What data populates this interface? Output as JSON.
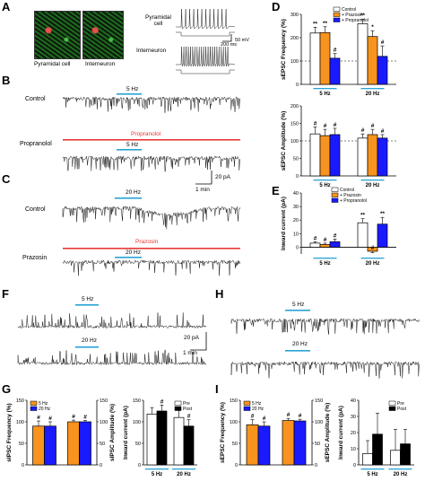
{
  "panel_letters": {
    "A": "A",
    "B": "B",
    "C": "C",
    "D": "D",
    "E": "E",
    "F": "F",
    "G": "G",
    "H": "H",
    "I": "I"
  },
  "panelA": {
    "image_labels": [
      "Pyramidal cell",
      "Interneuron"
    ],
    "trace_labels": [
      "Pyramidal\ncell",
      "Interneuron"
    ],
    "scale_v": "50 mV",
    "scale_t": "200 ms"
  },
  "panelB": {
    "row1": "Control",
    "row2": "Propranolol",
    "stim1": "5 Hz",
    "stim2": "5 Hz",
    "drug": "Propranolol",
    "scale_v": "20 pA",
    "scale_t": "1 min"
  },
  "panelC": {
    "row1": "Control",
    "row2": "Prazosin",
    "stim1": "20 Hz",
    "stim2": "20 Hz",
    "drug": "Prazosin"
  },
  "panelF": {
    "stim1": "5 Hz",
    "stim2": "20 Hz",
    "scale_v": "20 pA",
    "scale_t": "1 min"
  },
  "panelH": {
    "stim1": "5 Hz",
    "stim2": "20 Hz"
  },
  "colors": {
    "control": "#ffffff",
    "prazosin": "#f7931e",
    "propranolol": "#1a1aff",
    "red_bar": "#e53935",
    "stim_bar": "#29a3d6",
    "black": "#000000"
  },
  "chart_data": [
    {
      "id": "D-top",
      "type": "bar",
      "ylabel": "sEPSC Frequency (%)",
      "ylim": [
        0,
        300
      ],
      "yticks": [
        "0",
        "100",
        "200",
        "300"
      ],
      "categories": [
        "5 Hz",
        "20 Hz"
      ],
      "legend": [
        "Control",
        "+ Prazosin",
        "+ Propranolol"
      ],
      "series": [
        {
          "name": "Control",
          "values": [
            220,
            260
          ],
          "err": [
            25,
            20
          ],
          "marks": [
            "**",
            "**"
          ]
        },
        {
          "name": "+ Prazosin",
          "values": [
            222,
            205
          ],
          "err": [
            25,
            25
          ],
          "marks": [
            "**",
            "*"
          ]
        },
        {
          "name": "+ Propranolol",
          "values": [
            112,
            120
          ],
          "err": [
            20,
            45
          ],
          "marks": [
            "#",
            "#"
          ]
        }
      ],
      "dashed_at": 100
    },
    {
      "id": "D-bottom",
      "type": "bar",
      "ylabel": "sEPSC Amplitude (%)",
      "ylim": [
        0,
        200
      ],
      "yticks": [
        "0",
        "50",
        "100",
        "150",
        "200"
      ],
      "categories": [
        "5 Hz",
        "20 Hz"
      ],
      "series": [
        {
          "name": "Control",
          "values": [
            120,
            108
          ],
          "err": [
            20,
            12
          ],
          "marks": [
            "#",
            "#"
          ]
        },
        {
          "name": "+ Prazosin",
          "values": [
            115,
            118
          ],
          "err": [
            18,
            15
          ],
          "marks": [
            "#",
            "#"
          ]
        },
        {
          "name": "+ Propranolol",
          "values": [
            118,
            108
          ],
          "err": [
            18,
            10
          ],
          "marks": [
            "#",
            "#"
          ]
        }
      ],
      "dashed_at": 100
    },
    {
      "id": "E",
      "type": "bar",
      "ylabel": "Inward current (pA)",
      "ylim": [
        -5,
        40
      ],
      "yticks": [
        "0",
        "10",
        "20",
        "30",
        "40"
      ],
      "categories": [
        "5 Hz",
        "20 Hz"
      ],
      "legend": [
        "Control",
        "+ Prazosin",
        "+ Propranolol"
      ],
      "series": [
        {
          "name": "Control",
          "values": [
            3,
            18
          ],
          "err": [
            1,
            3
          ],
          "marks": [
            "#",
            "**"
          ]
        },
        {
          "name": "+ Prazosin",
          "values": [
            2,
            -3
          ],
          "err": [
            1,
            1
          ],
          "marks": [
            "#",
            "#"
          ]
        },
        {
          "name": "+ Propranolol",
          "values": [
            4,
            17
          ],
          "err": [
            2,
            5
          ],
          "marks": [
            "#",
            "**"
          ]
        }
      ]
    },
    {
      "id": "G-left",
      "type": "bar",
      "ylabel": "sIPSC Frequency (%)",
      "ylabel2": "sIPSC Amplitude (%)",
      "ylim": [
        0,
        150
      ],
      "yticks": [
        "0",
        "50",
        "100",
        "150"
      ],
      "categories": [
        "freq",
        "amp"
      ],
      "legend": [
        "5 Hz",
        "20 Hz"
      ],
      "series": [
        {
          "name": "5 Hz",
          "values": [
            90,
            100
          ],
          "err": [
            12,
            4
          ],
          "marks": [
            "#",
            "#"
          ]
        },
        {
          "name": "20 Hz",
          "values": [
            90,
            100
          ],
          "err": [
            10,
            3
          ],
          "marks": [
            "#",
            "#"
          ]
        }
      ]
    },
    {
      "id": "G-right",
      "type": "bar",
      "ylabel": "Inward current (pA)",
      "ylim": [
        0,
        150
      ],
      "yticks": [
        "0",
        "50",
        "100",
        "150"
      ],
      "categories": [
        "5 Hz",
        "20 Hz"
      ],
      "legend": [
        "Pre",
        "Post"
      ],
      "series": [
        {
          "name": "Pre",
          "values": [
            118,
            110
          ],
          "err": [
            15,
            22
          ],
          "marks": [
            "",
            ""
          ]
        },
        {
          "name": "Post",
          "values": [
            125,
            90
          ],
          "err": [
            14,
            15
          ],
          "marks": [
            "#",
            "#"
          ]
        }
      ]
    },
    {
      "id": "I-left",
      "type": "bar",
      "ylabel": "sEPSC Frequency (%)",
      "ylabel2": "sEPSC Amplitude (%)",
      "ylim": [
        0,
        150
      ],
      "yticks": [
        "0",
        "50",
        "100",
        "150"
      ],
      "categories": [
        "freq",
        "amp"
      ],
      "legend": [
        "5 Hz",
        "20 Hz"
      ],
      "series": [
        {
          "name": "5 Hz",
          "values": [
            93,
            103
          ],
          "err": [
            12,
            5
          ],
          "marks": [
            "#",
            "#"
          ]
        },
        {
          "name": "20 Hz",
          "values": [
            90,
            102
          ],
          "err": [
            10,
            4
          ],
          "marks": [
            "#",
            "#"
          ]
        }
      ]
    },
    {
      "id": "I-right",
      "type": "bar",
      "ylabel": "Inward current (pA)",
      "ylim": [
        0,
        40
      ],
      "yticks": [
        "0",
        "10",
        "20",
        "30",
        "40"
      ],
      "categories": [
        "5 Hz",
        "20 Hz"
      ],
      "legend": [
        "Pre",
        "Post"
      ],
      "series": [
        {
          "name": "Pre",
          "values": [
            7,
            9
          ],
          "err": [
            8,
            13
          ],
          "marks": [
            "",
            ""
          ]
        },
        {
          "name": "Post",
          "values": [
            19,
            13
          ],
          "err": [
            13,
            9
          ],
          "marks": [
            "",
            ""
          ]
        }
      ]
    }
  ]
}
